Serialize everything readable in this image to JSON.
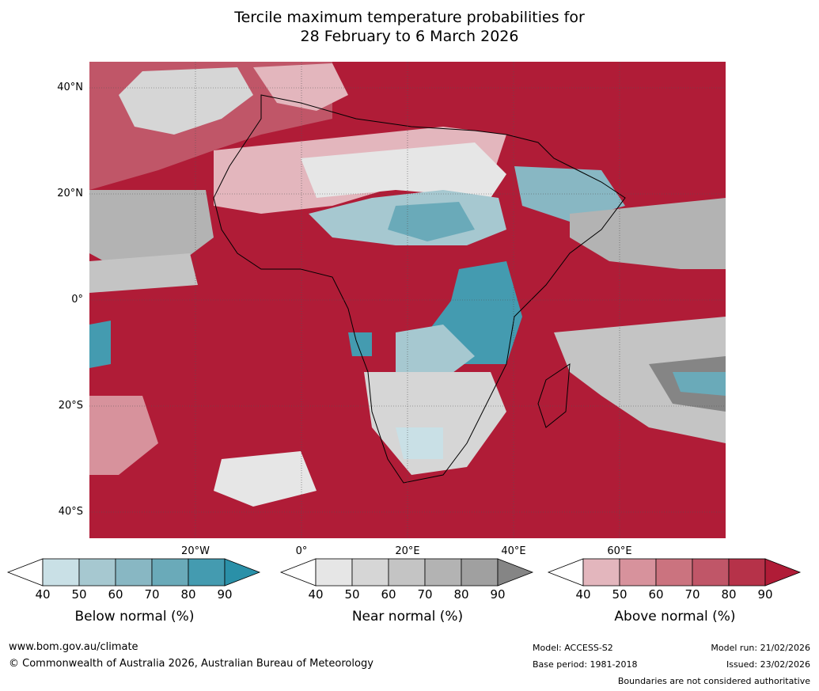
{
  "title": {
    "line1": "Tercile maximum temperature probabilities for",
    "line2": "28 February to 6 March 2026"
  },
  "map": {
    "lat_labels": [
      "40°N",
      "20°N",
      "0°",
      "20°S",
      "40°S"
    ],
    "lon_labels": [
      "20°W",
      "0°",
      "20°E",
      "40°E",
      "60°E"
    ]
  },
  "legend": {
    "ticks": [
      "40",
      "50",
      "60",
      "70",
      "80",
      "90"
    ],
    "below": {
      "label": "Below normal (%)",
      "colors": [
        "#ffffff",
        "#c9e0e6",
        "#a6c8d0",
        "#88b7c3",
        "#6aaab9",
        "#449bb0",
        "#2a90a8"
      ]
    },
    "near": {
      "label": "Near normal (%)",
      "colors": [
        "#ffffff",
        "#e6e6e6",
        "#d6d6d6",
        "#c4c4c4",
        "#b3b3b3",
        "#a0a0a0",
        "#858585"
      ]
    },
    "above": {
      "label": "Above normal (%)",
      "colors": [
        "#ffffff",
        "#e3b6bd",
        "#d7929c",
        "#cb737f",
        "#c05668",
        "#b63249",
        "#b01c37"
      ]
    }
  },
  "footer": {
    "website": "www.bom.gov.au/climate",
    "copyright": "© Commonwealth of Australia 2026, Australian Bureau of Meteorology",
    "model": "Model: ACCESS-S2",
    "base_period": "Base period: 1981-2018",
    "model_run": "Model run: 21/02/2026",
    "issued": "Issued: 23/02/2026",
    "disclaimer": "Boundaries are not considered authoritative"
  }
}
